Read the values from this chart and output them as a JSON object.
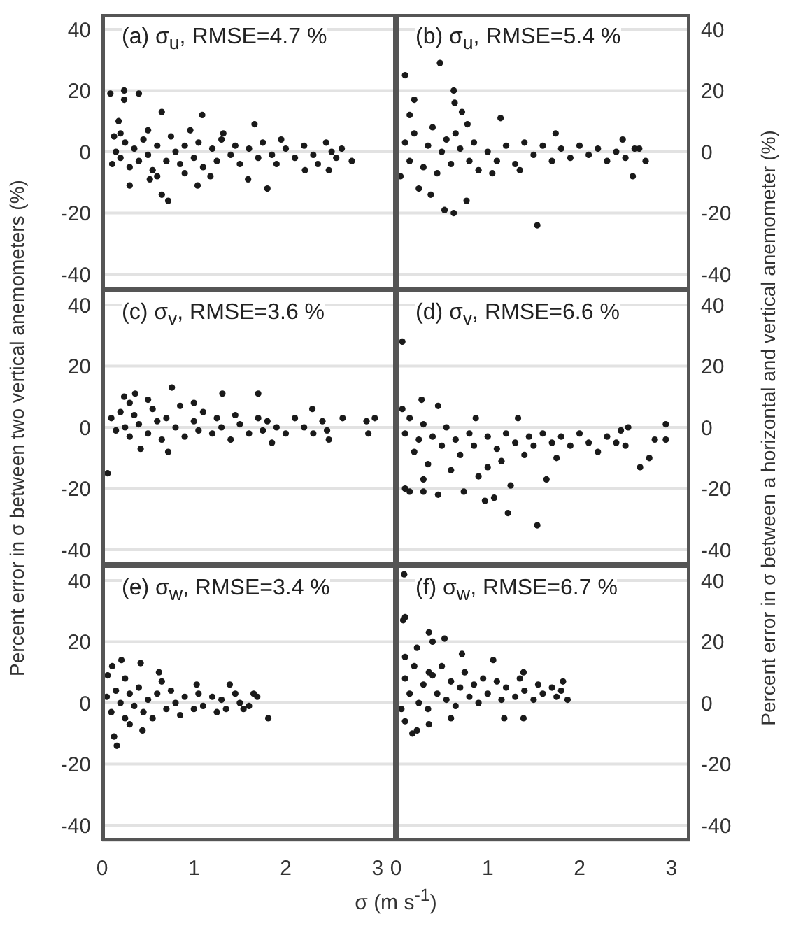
{
  "chart_data": [
    {
      "type": "scatter",
      "title": "(a) σ$_{u}$, RMSE=4.7 %",
      "color": "#1a1a1a",
      "marker": "circle",
      "grid": "y",
      "tick_labels": "y",
      "xlim": [
        0,
        3.2
      ],
      "xticks": [
        0,
        1,
        2,
        3
      ],
      "ylim": [
        -45,
        45
      ],
      "yticks": [
        -40,
        -20,
        0,
        20,
        40
      ],
      "x": [
        0.09,
        0.24,
        0.24,
        0.4,
        0.65,
        1.09,
        1.66,
        0.18,
        0.72,
        0.65,
        0.3,
        1.8,
        2.72,
        2.61,
        2.44,
        2.47,
        2.21,
        1.59,
        1.18,
        0.52,
        0.11,
        0.13,
        0.96,
        1.32,
        1.95,
        1.04,
        0.15,
        0.2,
        0.25,
        0.3,
        0.35,
        0.4,
        0.45,
        0.5,
        0.55,
        0.6,
        0.7,
        0.75,
        0.8,
        0.85,
        0.9,
        1.0,
        1.05,
        1.1,
        1.2,
        1.25,
        1.3,
        1.4,
        1.45,
        1.5,
        1.6,
        1.7,
        1.75,
        1.85,
        1.9,
        2.0,
        2.1,
        2.2,
        2.3,
        2.35,
        2.5,
        2.55,
        0.2,
        0.5,
        0.6,
        0.9
      ],
      "values": [
        19,
        20,
        17,
        19,
        13,
        12,
        9,
        10,
        -16,
        -14,
        -11,
        -12,
        -3,
        1,
        3,
        -6,
        -6,
        -9,
        -8,
        -9,
        -4,
        5,
        7,
        6,
        4,
        -11,
        0,
        -2,
        3,
        -5,
        1,
        -3,
        4,
        -1,
        -6,
        2,
        -3,
        5,
        0,
        -4,
        2,
        -2,
        3,
        -5,
        1,
        -3,
        4,
        -1,
        2,
        -4,
        1,
        -2,
        3,
        -1,
        -4,
        1,
        -2,
        2,
        -1,
        -4,
        0,
        -2,
        6,
        7,
        -8,
        -7
      ]
    },
    {
      "type": "scatter",
      "title": "(b) σ$_{u}$, RMSE=5.4 %",
      "color": "#1a1a1a",
      "marker": "circle",
      "grid": "y",
      "tick_labels": "y",
      "xlim": [
        0,
        3.2
      ],
      "xticks": [
        0,
        1,
        2,
        3
      ],
      "ylim": [
        -45,
        45
      ],
      "yticks": [
        -40,
        -20,
        0,
        20,
        40
      ],
      "x": [
        0.63,
        0.64,
        0.72,
        1.14,
        0.78,
        1.54,
        0.63,
        0.77,
        0.48,
        0.53,
        0.38,
        2.72,
        2.58,
        2.65,
        2.47,
        1.74,
        0.1,
        0.2,
        0.05,
        0.25,
        0.15,
        0.1,
        0.15,
        0.2,
        0.3,
        0.35,
        0.4,
        0.45,
        0.5,
        0.55,
        0.6,
        0.7,
        0.8,
        0.85,
        0.9,
        1.0,
        1.1,
        1.2,
        1.3,
        1.4,
        1.5,
        1.6,
        1.7,
        1.8,
        1.9,
        2.0,
        2.1,
        2.2,
        2.3,
        2.4,
        2.5,
        2.6,
        1.05,
        1.35,
        0.65
      ],
      "values": [
        20,
        16,
        13,
        11,
        9,
        -24,
        -20,
        -16,
        29,
        -19,
        -14,
        -3,
        -8,
        1,
        4,
        6,
        25,
        17,
        -8,
        -12,
        12,
        3,
        -3,
        6,
        -5,
        2,
        8,
        -7,
        0,
        4,
        -4,
        1,
        -3,
        3,
        -6,
        0,
        -3,
        2,
        -4,
        3,
        -1,
        2,
        -3,
        1,
        -2,
        2,
        -1,
        1,
        -3,
        0,
        -2,
        1,
        -7,
        -6,
        6
      ]
    },
    {
      "type": "scatter",
      "title": "(c) σ$_{v}$, RMSE=3.6 %",
      "ylabel": "Percent error in σ between two vertical anemometers (%)",
      "color": "#1a1a1a",
      "marker": "circle",
      "grid": "y",
      "tick_labels": "y",
      "xlim": [
        0,
        3.2
      ],
      "xticks": [
        0,
        1,
        2,
        3
      ],
      "ylim": [
        -45,
        45
      ],
      "yticks": [
        -40,
        -20,
        0,
        20,
        40
      ],
      "x": [
        0.76,
        0.06,
        2.9,
        2.88,
        2.97,
        1.7,
        1.31,
        2.62,
        2.47,
        0.72,
        0.42,
        0.36,
        0.24,
        1.85,
        2.29,
        0.1,
        0.15,
        0.2,
        0.25,
        0.3,
        0.35,
        0.4,
        0.5,
        0.55,
        0.6,
        0.65,
        0.7,
        0.8,
        0.85,
        0.9,
        1.0,
        1.05,
        1.1,
        1.2,
        1.25,
        1.3,
        1.4,
        1.45,
        1.5,
        1.6,
        1.7,
        1.75,
        1.8,
        1.9,
        2.0,
        2.1,
        2.2,
        2.3,
        2.4,
        2.45,
        0.5,
        1.0,
        0.3
      ],
      "values": [
        13,
        -15,
        -2,
        2,
        3,
        11,
        11,
        3,
        -4,
        -8,
        -7,
        11,
        10,
        -5,
        6,
        3,
        -1,
        5,
        0,
        -3,
        4,
        1,
        -2,
        6,
        2,
        -4,
        3,
        0,
        7,
        -3,
        2,
        -1,
        5,
        -2,
        3,
        0,
        -4,
        4,
        1,
        -2,
        3,
        -1,
        2,
        0,
        -2,
        3,
        0,
        -2,
        2,
        -1,
        9,
        8,
        8
      ]
    },
    {
      "type": "scatter",
      "title": "(d) σ$_{v}$, RMSE=6.6 %",
      "ylabel": "Percent error in σ between a horizontal and vertical anemometer (%)",
      "color": "#1a1a1a",
      "marker": "circle",
      "grid": "y",
      "tick_labels": "y",
      "xlim": [
        0,
        3.2
      ],
      "xticks": [
        0,
        1,
        2,
        3
      ],
      "ylim": [
        -45,
        45
      ],
      "yticks": [
        -40,
        -20,
        0,
        20,
        40
      ],
      "x": [
        0.07,
        1.54,
        1.22,
        0.97,
        1.07,
        2.66,
        2.76,
        2.94,
        2.94,
        2.82,
        2.53,
        1.64,
        0.3,
        0.46,
        0.74,
        0.46,
        0.28,
        1.33,
        0.87,
        0.07,
        0.1,
        0.15,
        0.3,
        0.1,
        0.15,
        0.2,
        0.25,
        0.3,
        0.35,
        0.4,
        0.5,
        0.55,
        0.6,
        0.65,
        0.7,
        0.8,
        0.85,
        0.9,
        1.0,
        1.1,
        1.15,
        1.2,
        1.3,
        1.4,
        1.45,
        1.5,
        1.6,
        1.7,
        1.75,
        1.8,
        1.9,
        2.0,
        2.1,
        2.2,
        2.3,
        2.4,
        2.45,
        2.5,
        1.0,
        1.25
      ],
      "values": [
        28,
        -32,
        -28,
        -24,
        -23,
        -13,
        -10,
        -4,
        1,
        -4,
        0,
        -17,
        -21,
        -22,
        -21,
        7,
        9,
        3,
        3,
        6,
        -20,
        -21,
        -17,
        -2,
        3,
        -8,
        -4,
        1,
        -12,
        -3,
        -6,
        0,
        -14,
        -4,
        -9,
        -2,
        -6,
        -16,
        -3,
        -7,
        -11,
        -2,
        -5,
        -9,
        -3,
        -6,
        -2,
        -5,
        -10,
        -3,
        -6,
        -2,
        -5,
        -8,
        -3,
        -5,
        -1,
        -6,
        -13,
        -19
      ]
    },
    {
      "type": "scatter",
      "title": "(e) σ$_{w}$, RMSE=3.4 %",
      "xlabel": "σ (m s$^{-1}$)",
      "color": "#1a1a1a",
      "marker": "circle",
      "grid": "y",
      "xlim": [
        0,
        3.2
      ],
      "xticks": [
        0,
        1,
        2,
        3
      ],
      "ylim": [
        -45,
        45
      ],
      "yticks": [
        -40,
        -20,
        0,
        20,
        40
      ],
      "x": [
        0.21,
        0.42,
        0.11,
        0.13,
        0.16,
        1.81,
        1.69,
        1.39,
        0.62,
        0.44,
        0.06,
        1.03,
        1.54,
        0.05,
        0.1,
        0.15,
        0.2,
        0.25,
        0.3,
        0.35,
        0.4,
        0.45,
        0.5,
        0.55,
        0.6,
        0.7,
        0.75,
        0.8,
        0.85,
        0.9,
        1.0,
        1.05,
        1.1,
        1.2,
        1.25,
        1.3,
        1.35,
        1.45,
        1.5,
        1.6,
        1.65,
        0.3,
        0.65,
        0.25
      ],
      "values": [
        14,
        13,
        12,
        -11,
        -14,
        -5,
        2,
        6,
        10,
        -9,
        9,
        6,
        -2,
        2,
        -3,
        4,
        0,
        -5,
        3,
        -1,
        5,
        -3,
        1,
        -5,
        3,
        -2,
        4,
        0,
        -4,
        2,
        -2,
        3,
        -1,
        2,
        -3,
        1,
        -2,
        3,
        0,
        -1,
        3,
        -7,
        7,
        8
      ]
    },
    {
      "type": "scatter",
      "title": "(f) σ$_{w}$, RMSE=6.7 %",
      "color": "#1a1a1a",
      "marker": "circle",
      "grid": "y",
      "xlim": [
        0,
        3.2
      ],
      "xticks": [
        0,
        1,
        2,
        3
      ],
      "ylim": [
        -45,
        45
      ],
      "yticks": [
        -40,
        -20,
        0,
        20,
        40
      ],
      "x": [
        0.09,
        0.08,
        0.1,
        0.36,
        0.53,
        0.72,
        1.06,
        1.39,
        1.82,
        1.87,
        1.39,
        1.18,
        0.6,
        0.36,
        0.18,
        0.23,
        0.1,
        0.1,
        0.23,
        0.36,
        0.06,
        0.4,
        0.1,
        0.15,
        0.2,
        0.25,
        0.3,
        0.35,
        0.4,
        0.45,
        0.5,
        0.55,
        0.6,
        0.65,
        0.7,
        0.75,
        0.8,
        0.85,
        0.9,
        0.95,
        1.0,
        1.1,
        1.15,
        1.2,
        1.3,
        1.35,
        1.4,
        1.5,
        1.55,
        1.6,
        1.7,
        1.75,
        1.8
      ],
      "values": [
        42,
        27,
        28,
        23,
        21,
        16,
        14,
        10,
        7,
        1,
        -5,
        -5,
        -5,
        -7,
        -10,
        -9,
        -6,
        15,
        18,
        10,
        -2,
        20,
        8,
        3,
        12,
        0,
        6,
        -2,
        9,
        3,
        12,
        1,
        7,
        -1,
        5,
        10,
        2,
        6,
        0,
        8,
        3,
        7,
        1,
        5,
        2,
        8,
        4,
        1,
        6,
        3,
        5,
        2,
        4
      ]
    }
  ]
}
